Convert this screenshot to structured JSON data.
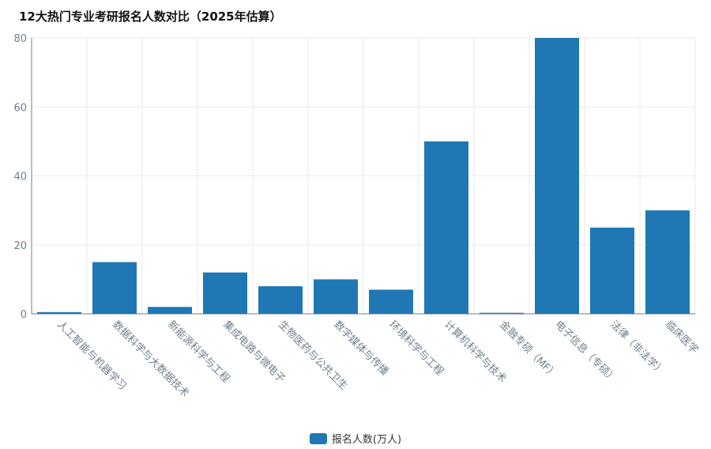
{
  "title": "12大热门专业考研报名人数对比（2025年估算）",
  "colors": {
    "bar": "#1f77b4",
    "grid": "#e8eaee",
    "axis": "#6e7f8d"
  },
  "chart_data": {
    "type": "bar",
    "title": "12大热门专业考研报名人数对比（2025年估算）",
    "xlabel": "",
    "ylabel": "",
    "ylim": [
      0,
      80
    ],
    "yticks": [
      0,
      20,
      40,
      60,
      80
    ],
    "grid": true,
    "legend_position": "bottom",
    "categories": [
      "人工智能与机器学习",
      "数据科学与大数据技术",
      "新能源科学与工程",
      "集成电路与微电子",
      "生物医药与公共卫生",
      "数字媒体与传播",
      "环境科学与工程",
      "计算机科学与技术",
      "金融专硕（MF）",
      "电子信息（专硕）",
      "法律（非法学）",
      "临床医学"
    ],
    "series": [
      {
        "name": "报名人数(万人)",
        "values": [
          0.5,
          15,
          2,
          12,
          8,
          10,
          7,
          50,
          0.3,
          80,
          25,
          30
        ]
      }
    ]
  }
}
